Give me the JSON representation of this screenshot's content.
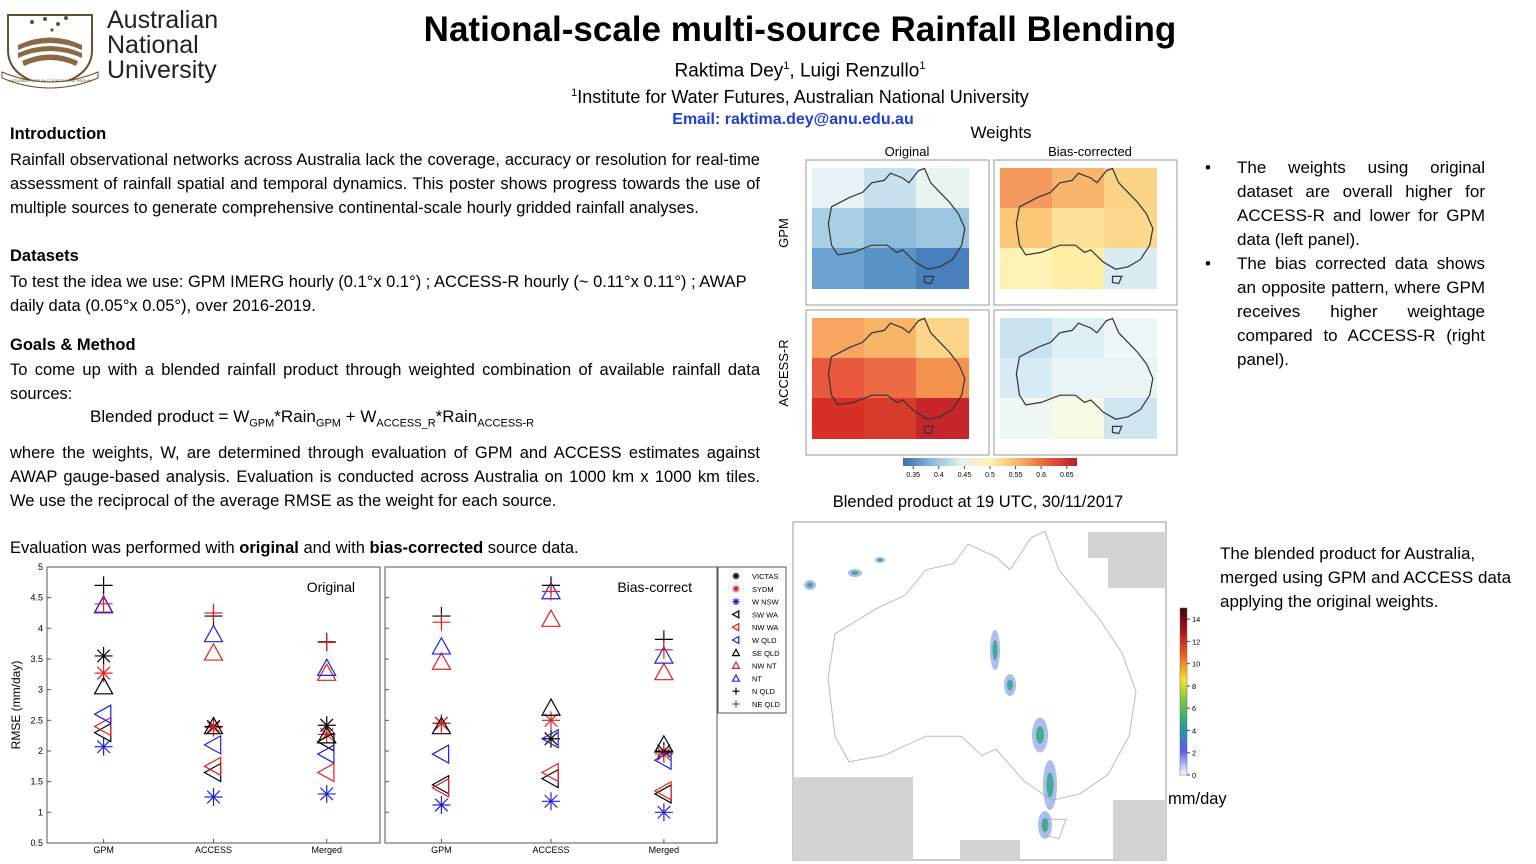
{
  "header": {
    "logo": [
      "Australian",
      "National",
      "University"
    ],
    "motto": "NATURAM PRIMUM COGNOSCERE RERUM",
    "title": "National-scale multi-source Rainfall Blending",
    "authors": [
      "Raktima Dey",
      "1",
      ", Luigi Renzullo",
      "1"
    ],
    "affiliation": [
      "1",
      "Institute for Water Futures, Australian National University"
    ],
    "email": "Email: raktima.dey@anu.edu.au"
  },
  "intro": {
    "heading": "Introduction",
    "text": "Rainfall observational networks across Australia lack the coverage, accuracy or resolution for real-time assessment of rainfall spatial and temporal dynamics.  This poster shows progress towards the use of multiple sources to generate comprehensive continental-scale hourly gridded rainfall  analyses."
  },
  "datasets": {
    "heading": "Datasets",
    "text": "To test the idea we use: GPM IMERG hourly (0.1°x 0.1°) ; ACCESS-R hourly (~ 0.11°x 0.11°) ; AWAP daily data (0.05°x 0.05°), over 2016-2019."
  },
  "goals": {
    "heading": "Goals & Method",
    "text": "To come up with a blended rainfall product through weighted combination of available rainfall data sources:",
    "formula": [
      "Blended product = W",
      "GPM",
      "*Rain",
      "GPM",
      " + W",
      "ACCESS_R",
      "*Rain",
      "ACCESS-R"
    ],
    "text2": "where the weights, W,  are determined through evaluation of GPM and ACCESS estimates against AWAP gauge-based analysis. Evaluation is conducted across Australia on 1000 km x 1000 km tiles. We use the reciprocal of the average RMSE as the weight for each source."
  },
  "evaluation_note": [
    "Evaluation was performed with ",
    "original",
    " and with ",
    "bias-corrected",
    " source data."
  ],
  "weights": {
    "title": "Weights",
    "col_labels": [
      "Original",
      "Bias-corrected"
    ],
    "row_labels": [
      "GPM",
      "ACCESS-R"
    ],
    "colorbar_lim": [
      0.33,
      0.67
    ],
    "colorbar_ticks": [
      0.35,
      0.4,
      0.45,
      0.5,
      0.55,
      0.6,
      0.65
    ]
  },
  "bullets": [
    "The weights using original dataset are overall higher for ACCESS-R and lower for GPM data (left panel).",
    "The bias corrected data shows an opposite pattern, where GPM receives higher weightage compared to ACCESS-R (right panel)."
  ],
  "blended": {
    "title": "Blended product at 19 UTC, 30/11/2017",
    "note": "The blended product for Australia, merged using GPM and ACCESS data applying the original weights.",
    "colorbar_lim": [
      0,
      15
    ],
    "colorbar_ticks": [
      0,
      2,
      4,
      6,
      8,
      10,
      12,
      14
    ],
    "unit": "mm/day"
  },
  "chart_data": {
    "type": "scatter",
    "ylabel": "RMSE (mm/day)",
    "categories": [
      "GPM",
      "ACCESS",
      "Merged"
    ],
    "panels": [
      "Original",
      "Bias-correct"
    ],
    "ylim": [
      0.5,
      5
    ],
    "yticks": [
      0.5,
      1,
      1.5,
      2,
      2.5,
      3,
      3.5,
      4,
      4.5,
      5
    ],
    "series": [
      {
        "name": "VICTAS",
        "color": "#000000",
        "marker": "asterisk",
        "values": [
          [
            3.55,
            2.4,
            2.42
          ],
          [
            2.45,
            2.2,
            2.0
          ]
        ]
      },
      {
        "name": "SYDM",
        "color": "#e02020",
        "marker": "asterisk",
        "values": [
          [
            3.27,
            2.38,
            2.27
          ],
          [
            2.45,
            2.5,
            1.95
          ]
        ]
      },
      {
        "name": "W NSW",
        "color": "#2020e0",
        "marker": "asterisk",
        "values": [
          [
            2.07,
            1.25,
            1.3
          ],
          [
            1.12,
            1.18,
            1.0
          ]
        ]
      },
      {
        "name": "SW WA",
        "color": "#000000",
        "marker": "tri-left",
        "values": [
          [
            2.3,
            1.65,
            2.15
          ],
          [
            1.45,
            1.55,
            1.3
          ]
        ]
      },
      {
        "name": "NW WA",
        "color": "#e02020",
        "marker": "tri-left",
        "values": [
          [
            2.4,
            1.75,
            1.65
          ],
          [
            1.4,
            1.65,
            1.35
          ]
        ]
      },
      {
        "name": "W QLD",
        "color": "#2020e0",
        "marker": "tri-left",
        "values": [
          [
            2.6,
            2.1,
            1.95
          ],
          [
            1.95,
            2.2,
            1.85
          ]
        ]
      },
      {
        "name": "SE QLD",
        "color": "#000000",
        "marker": "triangle",
        "values": [
          [
            3.05,
            2.4,
            2.25
          ],
          [
            2.4,
            2.7,
            2.1
          ]
        ]
      },
      {
        "name": "NW NT",
        "color": "#e02020",
        "marker": "triangle",
        "values": [
          [
            4.37,
            3.6,
            3.27
          ],
          [
            3.45,
            4.15,
            3.28
          ]
        ]
      },
      {
        "name": "NT",
        "color": "#2020e0",
        "marker": "triangle",
        "values": [
          [
            4.38,
            3.9,
            3.35
          ],
          [
            3.7,
            4.6,
            3.55
          ]
        ]
      },
      {
        "name": "N QLD",
        "color": "#000000",
        "marker": "plus",
        "values": [
          [
            4.7,
            4.2,
            3.78
          ],
          [
            4.2,
            4.7,
            3.82
          ]
        ]
      },
      {
        "name": "NE QLD",
        "color": "#e02020",
        "marker": "plus",
        "values": [
          [
            4.4,
            4.25,
            3.77
          ],
          [
            4.1,
            4.6,
            3.65
          ]
        ]
      }
    ]
  }
}
